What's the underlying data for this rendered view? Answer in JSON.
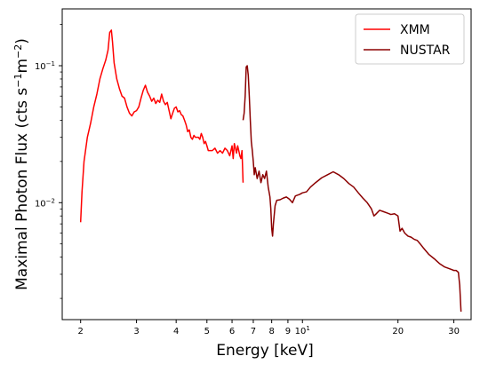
{
  "chart_data": {
    "type": "line",
    "title": "",
    "xlabel": "Energy [keV]",
    "ylabel_prefix": "Maximal Photon Flux (cts s",
    "ylabel_sup1": "−1",
    "ylabel_mid": "m",
    "ylabel_sup2": "−2",
    "ylabel_suffix": ")",
    "xscale": "log",
    "yscale": "log",
    "xlim": [
      1.75,
      34
    ],
    "ylim": [
      0.0014,
      0.26
    ],
    "x_ticks": [
      {
        "value": 2,
        "label": "2"
      },
      {
        "value": 3,
        "label": "3"
      },
      {
        "value": 4,
        "label": "4"
      },
      {
        "value": 5,
        "label": "5"
      },
      {
        "value": 6,
        "label": "6"
      },
      {
        "value": 7,
        "label": "7"
      },
      {
        "value": 8,
        "label": "8"
      },
      {
        "value": 9,
        "label": "9"
      },
      {
        "value": 10,
        "label_base": "10",
        "label_exp": "1"
      },
      {
        "value": 20,
        "label": "20"
      },
      {
        "value": 30,
        "label": "30"
      }
    ],
    "y_ticks": [
      {
        "value": 0.1,
        "label_base": "10",
        "label_exp": "−1"
      },
      {
        "value": 0.01,
        "label_base": "10",
        "label_exp": "−2"
      }
    ],
    "legend_position": "top-right",
    "series": [
      {
        "name": "XMM",
        "color": "#ff0000",
        "points": [
          [
            2.0,
            0.0072
          ],
          [
            2.02,
            0.012
          ],
          [
            2.05,
            0.02
          ],
          [
            2.1,
            0.03
          ],
          [
            2.15,
            0.038
          ],
          [
            2.2,
            0.05
          ],
          [
            2.25,
            0.062
          ],
          [
            2.3,
            0.08
          ],
          [
            2.35,
            0.095
          ],
          [
            2.4,
            0.11
          ],
          [
            2.44,
            0.13
          ],
          [
            2.47,
            0.175
          ],
          [
            2.5,
            0.182
          ],
          [
            2.52,
            0.15
          ],
          [
            2.55,
            0.105
          ],
          [
            2.6,
            0.08
          ],
          [
            2.65,
            0.068
          ],
          [
            2.7,
            0.06
          ],
          [
            2.75,
            0.058
          ],
          [
            2.8,
            0.05
          ],
          [
            2.85,
            0.045
          ],
          [
            2.9,
            0.043
          ],
          [
            2.95,
            0.046
          ],
          [
            3.0,
            0.047
          ],
          [
            3.05,
            0.05
          ],
          [
            3.1,
            0.058
          ],
          [
            3.15,
            0.066
          ],
          [
            3.2,
            0.072
          ],
          [
            3.25,
            0.064
          ],
          [
            3.3,
            0.06
          ],
          [
            3.35,
            0.055
          ],
          [
            3.4,
            0.058
          ],
          [
            3.45,
            0.053
          ],
          [
            3.5,
            0.056
          ],
          [
            3.55,
            0.054
          ],
          [
            3.6,
            0.062
          ],
          [
            3.65,
            0.055
          ],
          [
            3.7,
            0.052
          ],
          [
            3.75,
            0.054
          ],
          [
            3.8,
            0.047
          ],
          [
            3.85,
            0.041
          ],
          [
            3.9,
            0.045
          ],
          [
            3.95,
            0.049
          ],
          [
            4.0,
            0.05
          ],
          [
            4.05,
            0.046
          ],
          [
            4.1,
            0.047
          ],
          [
            4.15,
            0.044
          ],
          [
            4.2,
            0.043
          ],
          [
            4.25,
            0.04
          ],
          [
            4.3,
            0.037
          ],
          [
            4.35,
            0.033
          ],
          [
            4.4,
            0.034
          ],
          [
            4.45,
            0.03
          ],
          [
            4.5,
            0.029
          ],
          [
            4.55,
            0.031
          ],
          [
            4.6,
            0.03
          ],
          [
            4.65,
            0.03
          ],
          [
            4.7,
            0.03
          ],
          [
            4.75,
            0.029
          ],
          [
            4.8,
            0.032
          ],
          [
            4.85,
            0.03
          ],
          [
            4.9,
            0.027
          ],
          [
            4.95,
            0.028
          ],
          [
            5.0,
            0.026
          ],
          [
            5.05,
            0.024
          ],
          [
            5.1,
            0.024
          ],
          [
            5.2,
            0.024
          ],
          [
            5.3,
            0.025
          ],
          [
            5.4,
            0.023
          ],
          [
            5.5,
            0.024
          ],
          [
            5.6,
            0.023
          ],
          [
            5.7,
            0.025
          ],
          [
            5.8,
            0.024
          ],
          [
            5.9,
            0.022
          ],
          [
            6.0,
            0.026
          ],
          [
            6.05,
            0.021
          ],
          [
            6.1,
            0.027
          ],
          [
            6.15,
            0.025
          ],
          [
            6.2,
            0.023
          ],
          [
            6.25,
            0.026
          ],
          [
            6.3,
            0.024
          ],
          [
            6.35,
            0.022
          ],
          [
            6.4,
            0.021
          ],
          [
            6.45,
            0.024
          ],
          [
            6.5,
            0.014
          ]
        ]
      },
      {
        "name": "NUSTAR",
        "color": "#8b0000",
        "points": [
          [
            6.5,
            0.04
          ],
          [
            6.55,
            0.045
          ],
          [
            6.6,
            0.06
          ],
          [
            6.65,
            0.098
          ],
          [
            6.7,
            0.1
          ],
          [
            6.75,
            0.085
          ],
          [
            6.8,
            0.06
          ],
          [
            6.85,
            0.04
          ],
          [
            6.9,
            0.028
          ],
          [
            6.95,
            0.024
          ],
          [
            7.0,
            0.02
          ],
          [
            7.05,
            0.016
          ],
          [
            7.1,
            0.018
          ],
          [
            7.2,
            0.015
          ],
          [
            7.3,
            0.017
          ],
          [
            7.4,
            0.014
          ],
          [
            7.5,
            0.016
          ],
          [
            7.6,
            0.015
          ],
          [
            7.7,
            0.017
          ],
          [
            7.8,
            0.013
          ],
          [
            7.9,
            0.011
          ],
          [
            7.95,
            0.009
          ],
          [
            8.0,
            0.0065
          ],
          [
            8.05,
            0.0057
          ],
          [
            8.1,
            0.007
          ],
          [
            8.2,
            0.0095
          ],
          [
            8.3,
            0.0104
          ],
          [
            8.5,
            0.0105
          ],
          [
            8.7,
            0.0108
          ],
          [
            8.9,
            0.011
          ],
          [
            9.1,
            0.0106
          ],
          [
            9.3,
            0.01
          ],
          [
            9.5,
            0.0112
          ],
          [
            9.8,
            0.0115
          ],
          [
            10.0,
            0.0118
          ],
          [
            10.3,
            0.012
          ],
          [
            10.6,
            0.013
          ],
          [
            11.0,
            0.014
          ],
          [
            11.5,
            0.0152
          ],
          [
            12.0,
            0.016
          ],
          [
            12.5,
            0.0168
          ],
          [
            13.0,
            0.016
          ],
          [
            13.5,
            0.015
          ],
          [
            14.0,
            0.0138
          ],
          [
            14.5,
            0.013
          ],
          [
            15.0,
            0.0118
          ],
          [
            15.5,
            0.0108
          ],
          [
            16.0,
            0.01
          ],
          [
            16.5,
            0.009
          ],
          [
            16.8,
            0.008
          ],
          [
            17.0,
            0.0082
          ],
          [
            17.5,
            0.0088
          ],
          [
            18.0,
            0.0086
          ],
          [
            18.5,
            0.0084
          ],
          [
            19.0,
            0.0082
          ],
          [
            19.5,
            0.0083
          ],
          [
            20.0,
            0.008
          ],
          [
            20.3,
            0.0062
          ],
          [
            20.6,
            0.0065
          ],
          [
            21.0,
            0.006
          ],
          [
            21.5,
            0.0057
          ],
          [
            22.0,
            0.0056
          ],
          [
            22.5,
            0.0054
          ],
          [
            23.0,
            0.0053
          ],
          [
            23.5,
            0.005
          ],
          [
            24.0,
            0.0047
          ],
          [
            25.0,
            0.0042
          ],
          [
            26.0,
            0.0039
          ],
          [
            27.0,
            0.0036
          ],
          [
            28.0,
            0.0034
          ],
          [
            29.0,
            0.0033
          ],
          [
            30.0,
            0.0032
          ],
          [
            30.5,
            0.0032
          ],
          [
            31.0,
            0.0031
          ],
          [
            31.3,
            0.0025
          ],
          [
            31.6,
            0.0016
          ]
        ]
      }
    ]
  }
}
